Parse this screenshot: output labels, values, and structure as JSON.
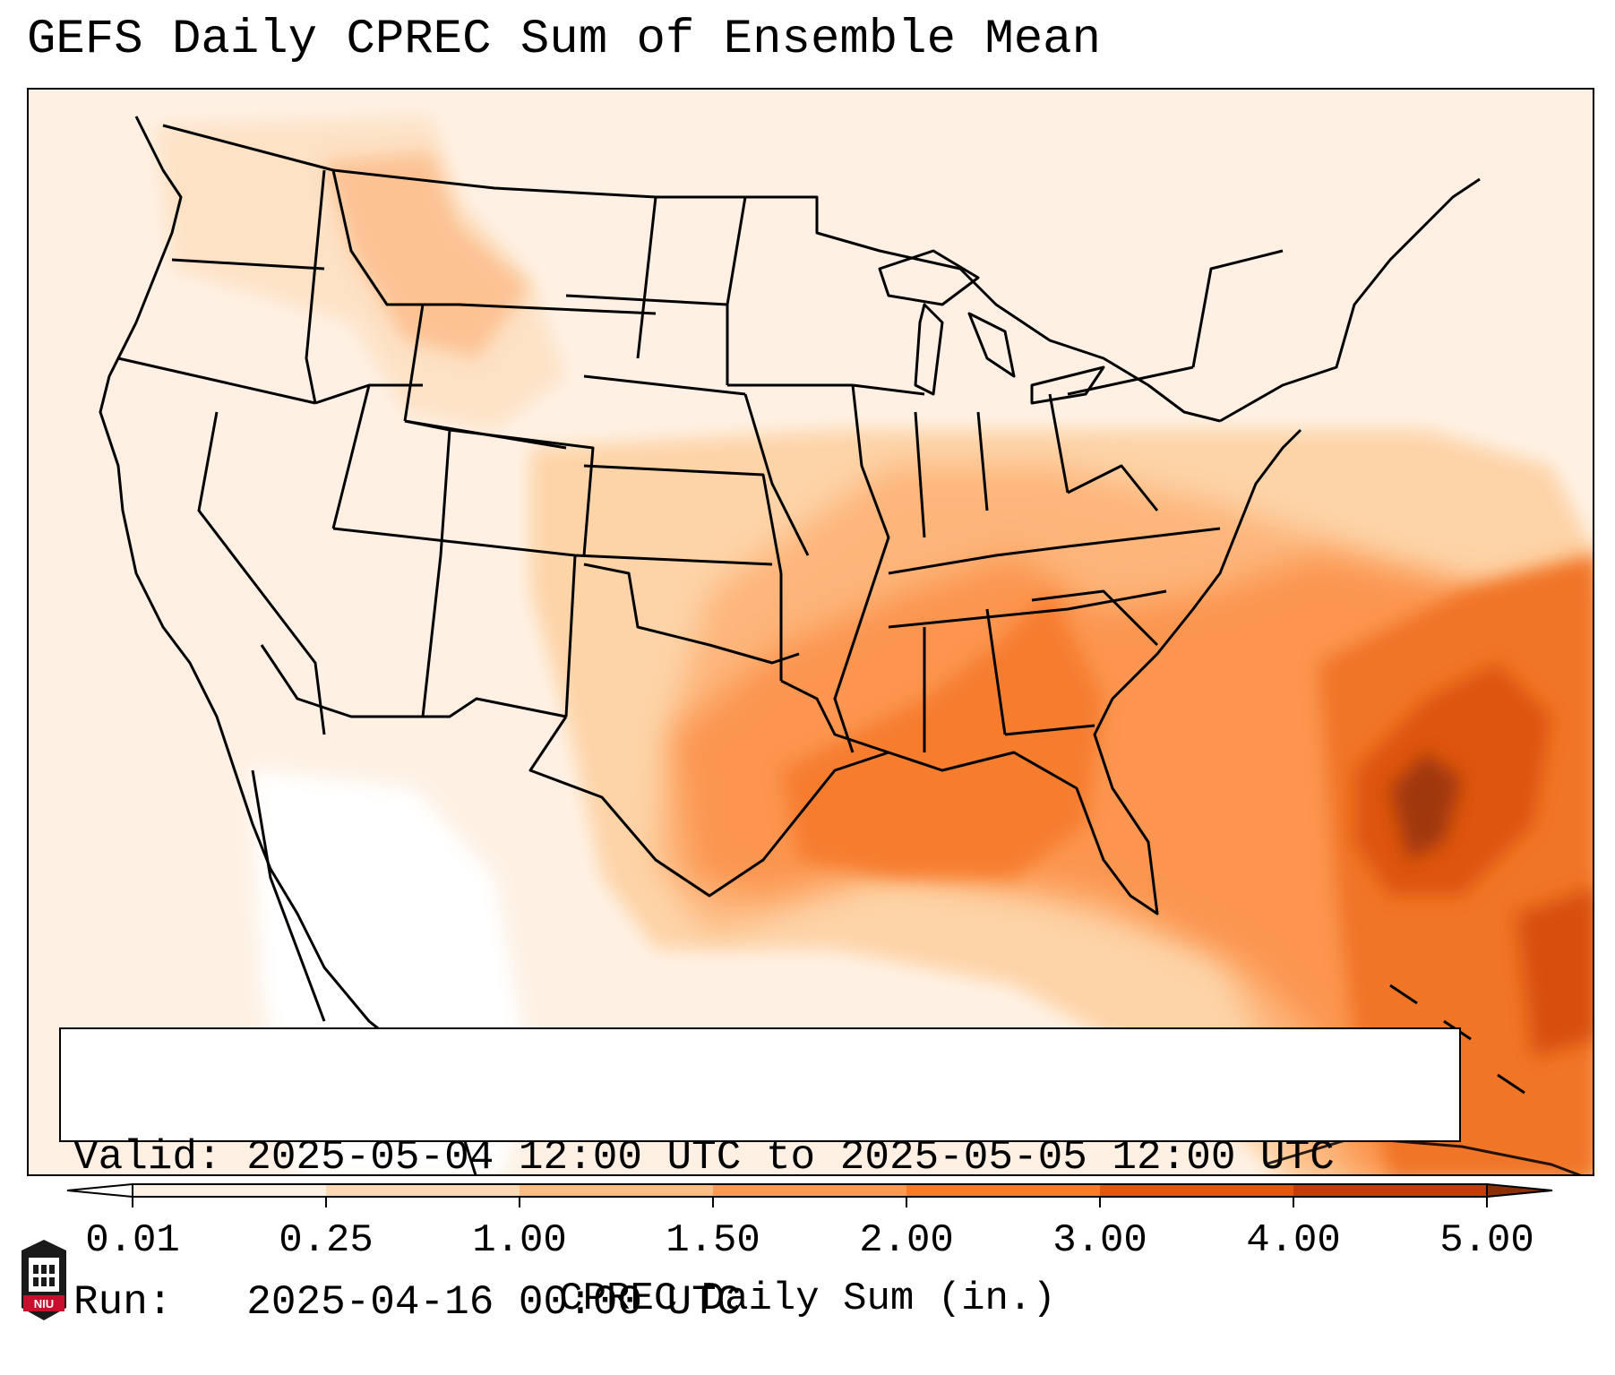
{
  "title": "GEFS Daily CPREC Sum of Ensemble Mean",
  "info": {
    "valid_label": "Valid:",
    "valid_value": "2025-05-04 12:00 UTC to 2025-05-05 12:00 UTC",
    "run_label": "Run:",
    "run_value": "2025-04-16 00:00 UTC"
  },
  "colorbar": {
    "label": "CPREC Daily Sum (in.)",
    "ticks": [
      "0.01",
      "0.25",
      "1.00",
      "1.50",
      "2.00",
      "3.00",
      "4.00",
      "5.00"
    ],
    "colors": [
      "#fef0e2",
      "#fdd9b6",
      "#fdbd86",
      "#fd9b55",
      "#f87b2a",
      "#e35810",
      "#c43d04"
    ],
    "under_color": "#ffffff",
    "over_color": "#8a2f06"
  },
  "map": {
    "region": "Continental United States",
    "heavy_zones": [
      "Southern Plains",
      "Mississippi Valley",
      "Ohio Valley",
      "Southeast",
      "Western Atlantic"
    ]
  },
  "logo": {
    "text": "NIU"
  }
}
